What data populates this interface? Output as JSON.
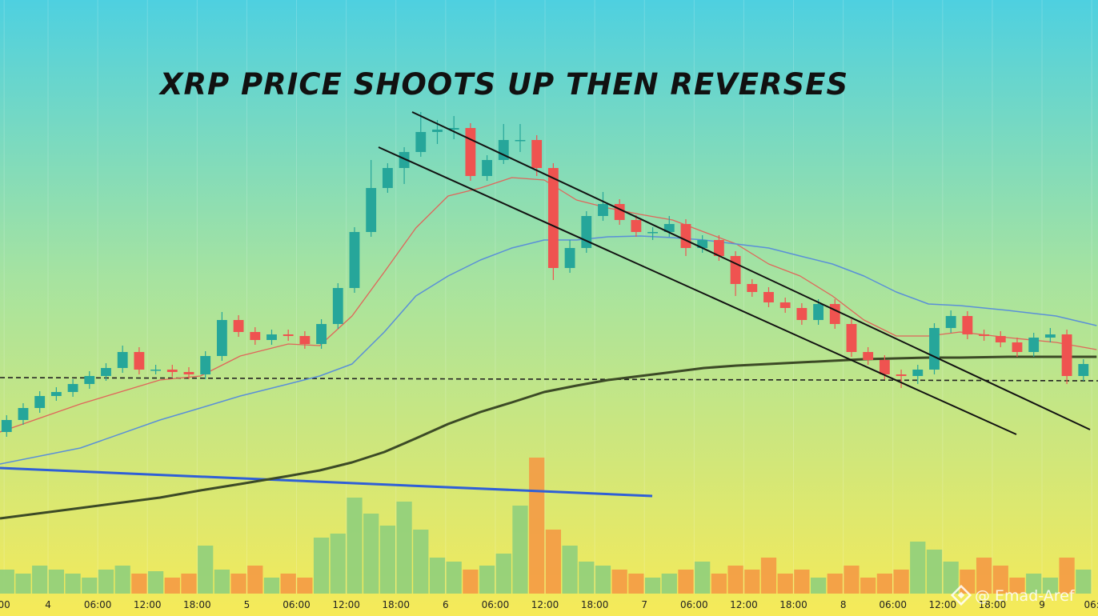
{
  "chart_data": {
    "type": "candlestick",
    "title": "XRP PRICE SHOOTS UP THEN REVERSES",
    "watermark": "@ Emad-Aref",
    "xlim": [
      0.2,
      132.76
    ],
    "ylim": [
      0,
      770
    ],
    "volume_ylim": [
      0,
      742
    ],
    "grid": true,
    "up_color": "#26a69a",
    "down_color": "#ef5350",
    "volume_up_color": "#8fcf7c",
    "volume_down_color": "#f49a45",
    "xticks": [
      {
        "value": 0.7,
        "label": "00"
      },
      {
        "value": 6,
        "label": "4"
      },
      {
        "value": 12,
        "label": "06:00"
      },
      {
        "value": 18,
        "label": "12:00"
      },
      {
        "value": 24,
        "label": "18:00"
      },
      {
        "value": 30,
        "label": "5"
      },
      {
        "value": 36,
        "label": "06:00"
      },
      {
        "value": 42,
        "label": "12:00"
      },
      {
        "value": 48,
        "label": "18:00"
      },
      {
        "value": 54,
        "label": "6"
      },
      {
        "value": 60,
        "label": "06:00"
      },
      {
        "value": 66,
        "label": "12:00"
      },
      {
        "value": 72,
        "label": "18:00"
      },
      {
        "value": 78,
        "label": "7"
      },
      {
        "value": 84,
        "label": "06:00"
      },
      {
        "value": 90,
        "label": "12:00"
      },
      {
        "value": 96,
        "label": "18:00"
      },
      {
        "value": 102,
        "label": "8"
      },
      {
        "value": 108,
        "label": "06:00"
      },
      {
        "value": 114,
        "label": "12:00"
      },
      {
        "value": 120,
        "label": "18:00"
      },
      {
        "value": 126,
        "label": "9"
      },
      {
        "value": 132,
        "label": "06:"
      }
    ],
    "x": [
      1,
      3,
      5,
      7,
      9,
      11,
      13,
      15,
      17,
      19,
      21,
      23,
      25,
      27,
      29,
      31,
      33,
      35,
      37,
      39,
      41,
      43,
      45,
      47,
      49,
      51,
      53,
      55,
      57,
      59,
      61,
      63,
      65,
      67,
      69,
      71,
      73,
      75,
      77,
      79,
      81,
      83,
      85,
      87,
      89,
      91,
      93,
      95,
      97,
      99,
      101,
      103,
      105,
      107,
      109,
      111,
      113,
      115,
      117,
      119,
      121,
      123,
      125,
      127,
      129,
      131
    ],
    "open": [
      230,
      245,
      260,
      275,
      280,
      290,
      300,
      310,
      330,
      308,
      308,
      305,
      302,
      325,
      370,
      355,
      345,
      352,
      350,
      340,
      365,
      410,
      480,
      535,
      560,
      580,
      605,
      608,
      610,
      550,
      570,
      595,
      595,
      560,
      435,
      460,
      500,
      515,
      495,
      480,
      480,
      490,
      460,
      470,
      450,
      415,
      405,
      392,
      385,
      370,
      390,
      365,
      330,
      320,
      302,
      300,
      308,
      360,
      375,
      352,
      350,
      342,
      330,
      348,
      352,
      300
    ],
    "high": [
      251,
      266,
      281,
      286,
      296,
      306,
      316,
      338,
      336,
      314,
      314,
      311,
      331,
      380,
      376,
      361,
      358,
      358,
      356,
      371,
      416,
      486,
      570,
      566,
      586,
      630,
      620,
      625,
      616,
      576,
      615,
      615,
      601,
      566,
      470,
      506,
      530,
      521,
      501,
      486,
      500,
      496,
      476,
      476,
      456,
      421,
      411,
      398,
      391,
      396,
      396,
      371,
      336,
      326,
      308,
      314,
      366,
      382,
      381,
      358,
      356,
      348,
      354,
      360,
      358,
      321
    ],
    "low": [
      224,
      239,
      254,
      269,
      274,
      284,
      294,
      304,
      302,
      302,
      299,
      296,
      296,
      319,
      349,
      339,
      339,
      344,
      334,
      334,
      359,
      404,
      474,
      529,
      540,
      574,
      590,
      596,
      544,
      544,
      565,
      580,
      550,
      420,
      429,
      454,
      494,
      489,
      474,
      470,
      474,
      450,
      454,
      444,
      400,
      399,
      386,
      379,
      364,
      364,
      359,
      324,
      314,
      296,
      285,
      290,
      302,
      354,
      346,
      344,
      336,
      324,
      324,
      342,
      290,
      294
    ],
    "close": [
      245,
      260,
      275,
      280,
      290,
      300,
      310,
      330,
      308,
      308,
      305,
      302,
      325,
      370,
      355,
      345,
      352,
      350,
      340,
      365,
      410,
      480,
      535,
      560,
      580,
      605,
      608,
      610,
      550,
      570,
      595,
      595,
      560,
      435,
      460,
      500,
      515,
      495,
      480,
      480,
      490,
      460,
      470,
      450,
      415,
      405,
      392,
      385,
      370,
      390,
      365,
      330,
      320,
      302,
      300,
      308,
      360,
      375,
      352,
      350,
      342,
      330,
      348,
      352,
      300,
      315
    ],
    "volume": [
      30,
      25,
      35,
      30,
      25,
      20,
      30,
      35,
      25,
      28,
      20,
      25,
      60,
      30,
      25,
      35,
      20,
      25,
      20,
      70,
      75,
      120,
      100,
      85,
      115,
      80,
      45,
      40,
      30,
      35,
      50,
      110,
      170,
      80,
      60,
      40,
      35,
      30,
      25,
      20,
      25,
      30,
      40,
      25,
      35,
      30,
      45,
      25,
      30,
      20,
      25,
      35,
      20,
      25,
      30,
      65,
      55,
      40,
      30,
      45,
      35,
      20,
      25,
      20,
      45,
      30
    ],
    "ma_x": [
      0.2,
      9.9,
      19.5,
      24.4,
      29.2,
      35,
      38.8,
      42.7,
      46.6,
      50.4,
      54.3,
      58.2,
      62,
      65.9,
      69.8,
      73.6,
      77.5,
      81.4,
      85.2,
      89.1,
      93,
      96.8,
      100.7,
      104.5,
      108.4,
      112.3,
      116.1,
      121.9,
      127.7,
      132.6
    ],
    "moving_averages": [
      {
        "color": "#e0655a",
        "width": 1.3,
        "values": [
          230,
          265,
          295,
          300,
          325,
          340,
          338,
          375,
          430,
          485,
          525,
          535,
          548,
          545,
          520,
          510,
          502,
          495,
          480,
          465,
          440,
          425,
          400,
          370,
          350,
          350,
          355,
          348,
          342,
          333
        ]
      },
      {
        "color": "#5a8fd8",
        "width": 1.5,
        "values": [
          190,
          210,
          245,
          260,
          275,
          290,
          300,
          315,
          355,
          400,
          425,
          445,
          460,
          470,
          470,
          474,
          475,
          473,
          470,
          465,
          460,
          450,
          440,
          425,
          405,
          390,
          388,
          382,
          375,
          363
        ]
      },
      {
        "color": "#3c4a26",
        "width": 3,
        "values": [
          122,
          135,
          148,
          157,
          165,
          175,
          182,
          192,
          205,
          222,
          240,
          255,
          267,
          280,
          288,
          295,
          300,
          305,
          310,
          313,
          315,
          317,
          319,
          321,
          322,
          323,
          323,
          324,
          324,
          324
        ]
      }
    ]
  }
}
